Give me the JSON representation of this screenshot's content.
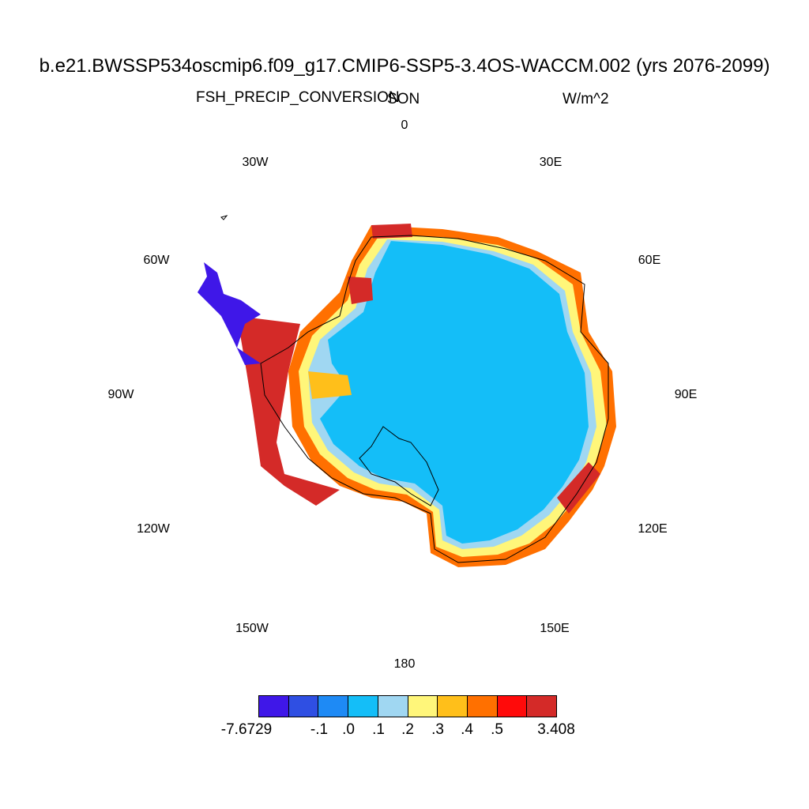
{
  "title": "b.e21.BWSSP534oscmip6.f09_g17.CMIP6-SSP5-3.4OS-WACCM.002 (yrs 2076-2099)",
  "variable": "FSH_PRECIP_CONVERSION",
  "season": "SON",
  "units": "W/m^2",
  "longitude_labels": [
    "0",
    "30E",
    "60E",
    "90E",
    "120E",
    "150E",
    "180",
    "150W",
    "120W",
    "90W",
    "60W",
    "30W"
  ],
  "colorbar": {
    "colors": [
      "#3f17e8",
      "#2f4fe3",
      "#1e8af5",
      "#14bef8",
      "#a0d7f2",
      "#fff67a",
      "#ffbf1a",
      "#ff7000",
      "#ff0a0a",
      "#d42a28"
    ],
    "labels": [
      "-7.6729",
      "-.1",
      ".0",
      ".1",
      ".2",
      ".3",
      ".4",
      ".5",
      "3.408"
    ]
  }
}
